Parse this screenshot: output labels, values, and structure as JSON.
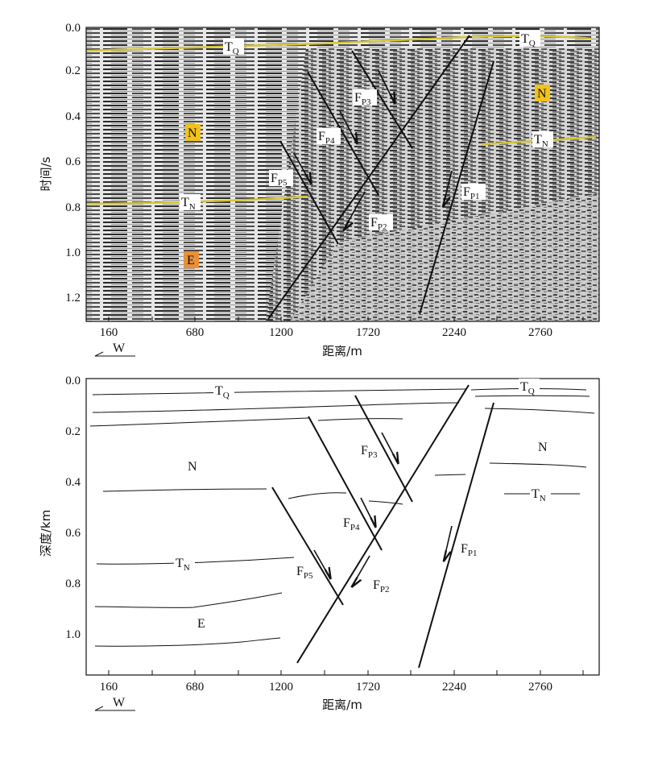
{
  "seismic_section": {
    "y_axis_label": "时间/s",
    "x_axis_label": "距离/m",
    "y_ticks": [
      "0.0",
      "0.2",
      "0.4",
      "0.6",
      "0.8",
      "1.0",
      "1.2"
    ],
    "x_ticks": [
      "160",
      "680",
      "1200",
      "1720",
      "2240",
      "2760"
    ],
    "direction": "W",
    "horizons": [
      {
        "main": "T",
        "sub": "Q"
      },
      {
        "main": "T",
        "sub": "Q"
      },
      {
        "main": "T",
        "sub": "N"
      },
      {
        "main": "T",
        "sub": "N"
      }
    ],
    "strata": [
      "N",
      "N",
      "E"
    ],
    "faults": [
      {
        "main": "F",
        "sub": "P1"
      },
      {
        "main": "F",
        "sub": "P2"
      },
      {
        "main": "F",
        "sub": "P3"
      },
      {
        "main": "F",
        "sub": "P4"
      },
      {
        "main": "F",
        "sub": "P5"
      }
    ],
    "colors": {
      "horizon_line": "#d6c43a",
      "stratum_N_fill": "#f2c21a",
      "stratum_E_fill": "#e8913a"
    }
  },
  "depth_section": {
    "y_axis_label": "深度/km",
    "x_axis_label": "距离/m",
    "y_ticks": [
      "0.0",
      "0.2",
      "0.4",
      "0.6",
      "0.8",
      "1.0"
    ],
    "x_ticks": [
      "160",
      "680",
      "1200",
      "1720",
      "2240",
      "2760"
    ],
    "direction": "W",
    "horizons": [
      {
        "main": "T",
        "sub": "Q"
      },
      {
        "main": "T",
        "sub": "Q"
      },
      {
        "main": "T",
        "sub": "N"
      },
      {
        "main": "T",
        "sub": "N"
      }
    ],
    "strata": [
      "N",
      "N",
      "E"
    ],
    "faults": [
      {
        "main": "F",
        "sub": "P1"
      },
      {
        "main": "F",
        "sub": "P2"
      },
      {
        "main": "F",
        "sub": "P3"
      },
      {
        "main": "F",
        "sub": "P4"
      },
      {
        "main": "F",
        "sub": "P5"
      }
    ]
  }
}
